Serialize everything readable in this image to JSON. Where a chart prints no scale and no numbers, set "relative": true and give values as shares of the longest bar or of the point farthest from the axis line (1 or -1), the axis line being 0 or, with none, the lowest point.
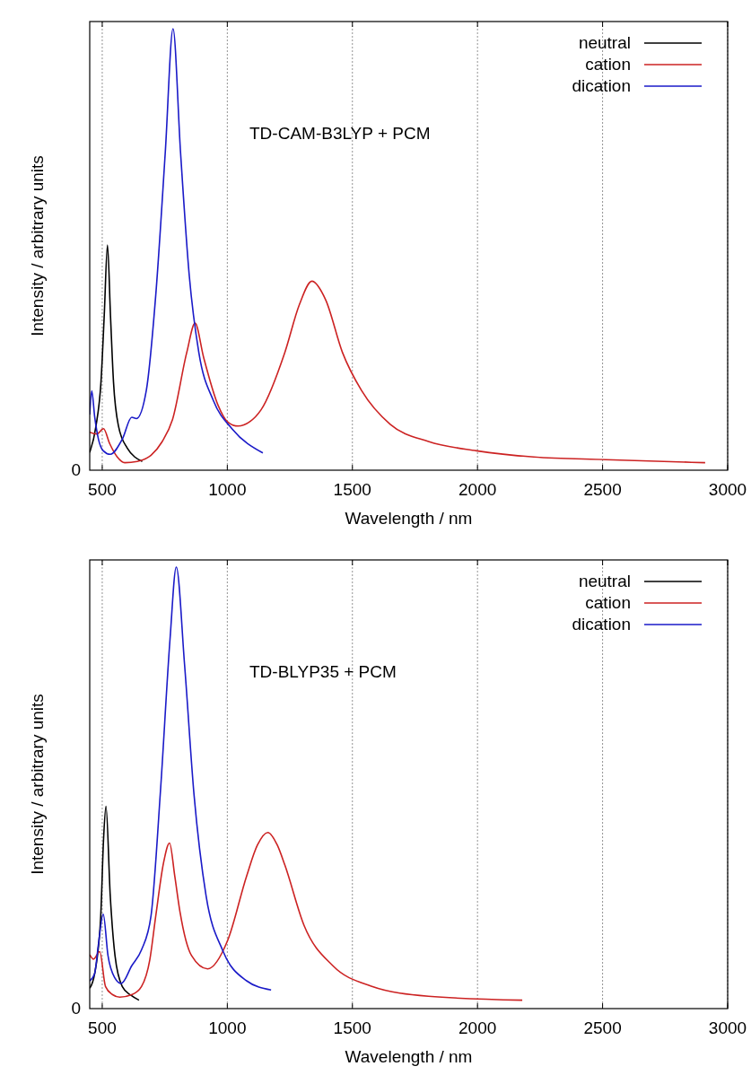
{
  "chart_data": [
    {
      "type": "line",
      "xlabel": "Wavelength / nm",
      "ylabel": "Intensity / arbitrary units",
      "relative": true,
      "xlim": [
        450,
        3000
      ],
      "xticks": [
        500,
        1000,
        1500,
        2000,
        2500,
        3000
      ],
      "grid": "x",
      "legend": "top right",
      "line_style": "solid",
      "annotations": [
        "TD-CAM-B3LYP + PCM",
        "0"
      ],
      "series": [
        {
          "name": "neutral",
          "color": "#000000",
          "x": [
            450,
            475,
            495,
            508,
            521,
            533,
            545,
            565,
            600,
            630,
            660
          ],
          "values": [
            0.04,
            0.1,
            0.2,
            0.35,
            0.51,
            0.35,
            0.2,
            0.1,
            0.05,
            0.03,
            0.02
          ]
        },
        {
          "name": "cation",
          "color": "#cc2222",
          "x": [
            450,
            478,
            505,
            530,
            560,
            590,
            640,
            695,
            740,
            781,
            838,
            871,
            905,
            963,
            1000,
            1043,
            1090,
            1135,
            1230,
            1288,
            1338,
            1393,
            1460,
            1537,
            1651,
            1804,
            1996,
            2225,
            2512,
            2910
          ],
          "values": [
            0.086,
            0.082,
            0.094,
            0.06,
            0.03,
            0.017,
            0.02,
            0.034,
            0.065,
            0.115,
            0.267,
            0.333,
            0.256,
            0.147,
            0.11,
            0.1,
            0.11,
            0.137,
            0.267,
            0.375,
            0.428,
            0.386,
            0.267,
            0.18,
            0.104,
            0.065,
            0.044,
            0.03,
            0.024,
            0.017
          ]
        },
        {
          "name": "dication",
          "color": "#1a1ac8",
          "x": [
            450,
            458,
            470,
            485,
            504,
            532,
            580,
            618,
            637,
            676,
            714,
            752,
            783,
            813,
            848,
            886,
            944,
            1020,
            1142
          ],
          "values": [
            0.126,
            0.18,
            0.12,
            0.07,
            0.044,
            0.036,
            0.07,
            0.12,
            0.117,
            0.18,
            0.397,
            0.72,
            1.0,
            0.72,
            0.44,
            0.267,
            0.158,
            0.093,
            0.039
          ]
        }
      ]
    },
    {
      "type": "line",
      "xlabel": "Wavelength / nm",
      "ylabel": "Intensity / arbitrary units",
      "relative": true,
      "xlim": [
        450,
        3000
      ],
      "xticks": [
        500,
        1000,
        1500,
        2000,
        2500,
        3000
      ],
      "grid": "x",
      "legend": "top right",
      "line_style": "solid",
      "annotations": [
        "TD-BLYP35 + PCM",
        "0"
      ],
      "series": [
        {
          "name": "neutral",
          "color": "#000000",
          "x": [
            450,
            470,
            494,
            505,
            515,
            532,
            551,
            580,
            615,
            647
          ],
          "values": [
            0.046,
            0.08,
            0.21,
            0.38,
            0.458,
            0.256,
            0.12,
            0.05,
            0.03,
            0.019
          ]
        },
        {
          "name": "cation",
          "color": "#cc2222",
          "x": [
            450,
            465,
            490,
            513,
            540,
            570,
            620,
            657,
            690,
            714,
            745,
            769,
            790,
            810,
            857,
            921,
            1001,
            1077,
            1120,
            1162,
            1200,
            1230,
            1307,
            1422,
            1575,
            1804,
            2179
          ],
          "values": [
            0.122,
            0.112,
            0.129,
            0.05,
            0.032,
            0.026,
            0.032,
            0.05,
            0.11,
            0.21,
            0.33,
            0.375,
            0.3,
            0.222,
            0.12,
            0.09,
            0.154,
            0.3,
            0.37,
            0.399,
            0.37,
            0.325,
            0.188,
            0.097,
            0.051,
            0.028,
            0.019
          ]
        },
        {
          "name": "dication",
          "color": "#1a1ac8",
          "x": [
            450,
            470,
            484,
            504,
            523,
            550,
            576,
            618,
            657,
            695,
            733,
            771,
            796,
            829,
            867,
            915,
            982,
            1077,
            1175
          ],
          "values": [
            0.063,
            0.08,
            0.142,
            0.214,
            0.12,
            0.07,
            0.057,
            0.097,
            0.133,
            0.21,
            0.495,
            0.837,
            1.0,
            0.78,
            0.484,
            0.256,
            0.131,
            0.063,
            0.042
          ]
        }
      ]
    }
  ]
}
